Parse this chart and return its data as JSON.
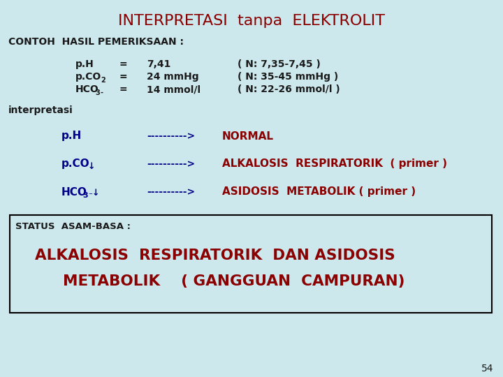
{
  "title": "INTERPRETASI  tanpa  ELEKTROLIT",
  "title_color": "#8B0000",
  "bg_color": "#cde8ed",
  "slide_number": "54",
  "contoh_label": "CONTOH  HASIL PEMERIKSAAN :",
  "interpretasi_label": "interpretasi",
  "status_label": "STATUS  ASAM-BASA :",
  "status_line1": "ALKALOSIS  RESPIRATORIK  DAN ASIDOSIS",
  "status_line2": "METABOLIK    ( GANGGUAN  CAMPURAN)",
  "dark_blue": "#00008B",
  "red": "#8B0000",
  "black": "#1a1a1a",
  "arrow_color": "#000080"
}
